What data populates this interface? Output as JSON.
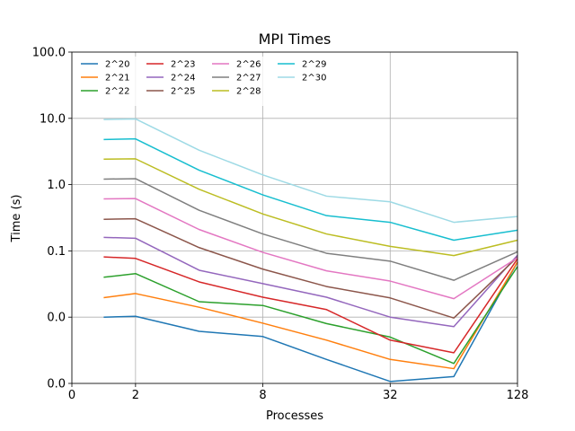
{
  "chart_data": {
    "type": "line",
    "title": "MPI Times",
    "xlabel": "Processes",
    "ylabel": "Time (s)",
    "x_scale": "log2",
    "y_scale": "log",
    "xlim": [
      1,
      128
    ],
    "ylim": [
      0.001,
      100
    ],
    "x_ticks": [
      {
        "value": 1,
        "label": "0"
      },
      {
        "value": 2,
        "label": "2"
      },
      {
        "value": 8,
        "label": "8"
      },
      {
        "value": 32,
        "label": "32"
      },
      {
        "value": 128,
        "label": "128"
      }
    ],
    "y_ticks": [
      {
        "value": 0.001,
        "label": "0.0"
      },
      {
        "value": 0.01,
        "label": "0.0"
      },
      {
        "value": 0.1,
        "label": "0.1"
      },
      {
        "value": 1,
        "label": "1.0"
      },
      {
        "value": 10,
        "label": "10.0"
      },
      {
        "value": 100,
        "label": "100.0"
      }
    ],
    "grid": true,
    "legend_position": "top-left",
    "legend_columns": 4,
    "x": [
      1.414,
      2,
      4,
      8,
      16,
      32,
      64,
      128
    ],
    "series": [
      {
        "name": "2^20",
        "color": "#1f77b4",
        "values": [
          0.01,
          0.0103,
          0.0061,
          0.0051,
          0.0023,
          0.00107,
          0.00127,
          0.068
        ]
      },
      {
        "name": "2^21",
        "color": "#ff7f0e",
        "values": [
          0.0197,
          0.0227,
          0.0141,
          0.0081,
          0.0045,
          0.0023,
          0.00167,
          0.068
        ]
      },
      {
        "name": "2^22",
        "color": "#2ca02c",
        "values": [
          0.04,
          0.0454,
          0.0171,
          0.015,
          0.008,
          0.005,
          0.002,
          0.058
        ]
      },
      {
        "name": "2^23",
        "color": "#d62728",
        "values": [
          0.081,
          0.077,
          0.034,
          0.02,
          0.013,
          0.0045,
          0.0029,
          0.076
        ]
      },
      {
        "name": "2^24",
        "color": "#9467bd",
        "values": [
          0.16,
          0.155,
          0.051,
          0.032,
          0.02,
          0.01,
          0.0072,
          0.086
        ]
      },
      {
        "name": "2^25",
        "color": "#8c564b",
        "values": [
          0.3,
          0.305,
          0.112,
          0.053,
          0.029,
          0.0195,
          0.0097,
          0.081
        ]
      },
      {
        "name": "2^26",
        "color": "#e377c2",
        "values": [
          0.61,
          0.615,
          0.21,
          0.095,
          0.05,
          0.035,
          0.019,
          0.079
        ]
      },
      {
        "name": "2^27",
        "color": "#7f7f7f",
        "values": [
          1.21,
          1.23,
          0.41,
          0.18,
          0.092,
          0.07,
          0.036,
          0.097
        ]
      },
      {
        "name": "2^28",
        "color": "#bcbd22",
        "values": [
          2.42,
          2.45,
          0.85,
          0.36,
          0.18,
          0.117,
          0.085,
          0.145
        ]
      },
      {
        "name": "2^29",
        "color": "#17becf",
        "values": [
          4.8,
          4.9,
          1.65,
          0.7,
          0.34,
          0.27,
          0.145,
          0.205
        ]
      },
      {
        "name": "2^30",
        "color": "#9edae5",
        "values": [
          9.6,
          9.8,
          3.3,
          1.4,
          0.67,
          0.55,
          0.27,
          0.33
        ]
      }
    ]
  }
}
